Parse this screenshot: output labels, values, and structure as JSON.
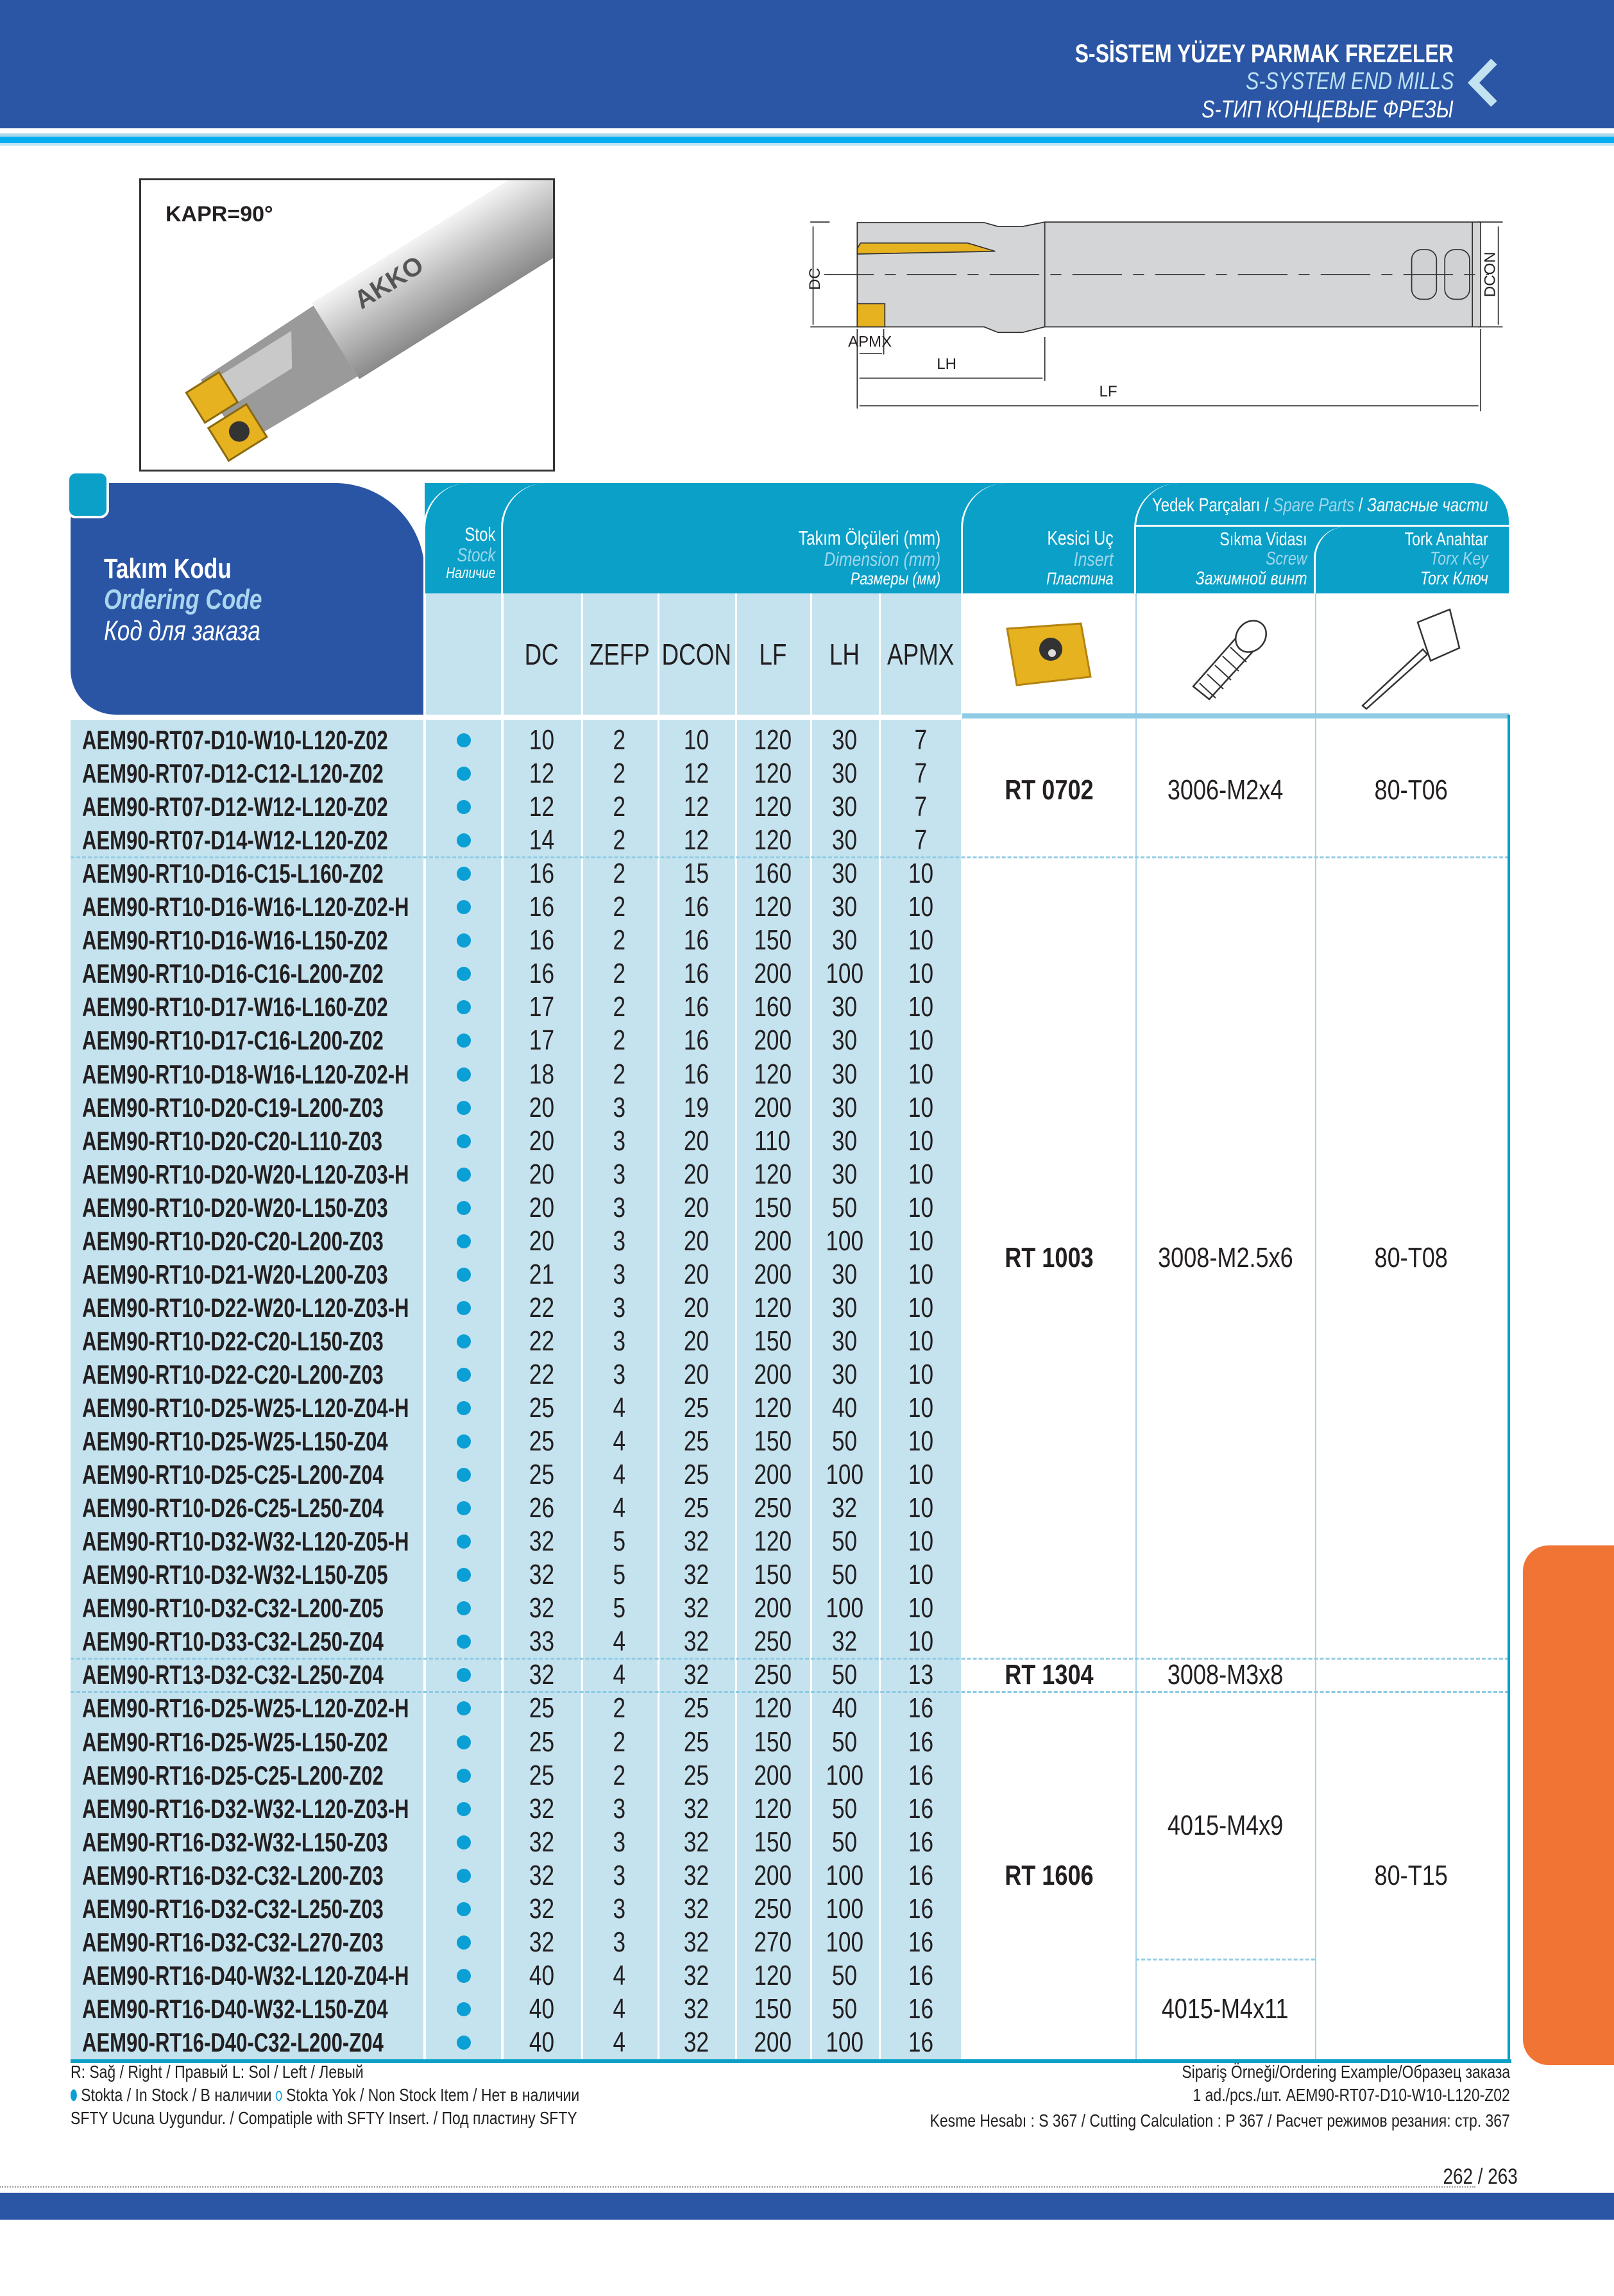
{
  "header": {
    "title_tr": "S-SİSTEM YÜZEY PARMAK FREZELER",
    "title_en": "S-SYSTEM END MILLS",
    "title_ru": "S-ТИП КОНЦЕВЫЕ ФРЕЗЫ",
    "back_icon": "chevron-left-icon"
  },
  "product": {
    "kapr": "KAPR=90°"
  },
  "diagram": {
    "labels": {
      "dc": "DC",
      "dcon": "DCON",
      "apmx": "APMX",
      "lh": "LH",
      "lf": "LF"
    }
  },
  "table": {
    "ordering_code": {
      "tr": "Takım Kodu",
      "en": "Ordering Code",
      "ru": "Код для заказа"
    },
    "stock": {
      "tr": "Stok",
      "en": "Stock",
      "ru": "Наличие"
    },
    "dimensions": {
      "tr": "Takım Ölçüleri (mm)",
      "en": "Dimension (mm)",
      "ru": "Размеры (мм)"
    },
    "insert": {
      "tr": "Kesici Uç",
      "en": "Insert",
      "ru": "Пластина"
    },
    "spare_parts": {
      "tr": "Yedek Parçaları",
      "en": "Spare Parts",
      "ru": "Запасные части"
    },
    "screw": {
      "tr": "Sıkma Vidası",
      "en": "Screw",
      "ru": "Зажимной винт"
    },
    "torx": {
      "tr": "Tork Anahtar",
      "en": "Torx Key",
      "ru": "Torx Ключ"
    },
    "columns": [
      "DC",
      "ZEFP",
      "DCON",
      "LF",
      "LH",
      "APMX"
    ],
    "groups": [
      {
        "insert": "RT 0702",
        "torx": "80-T06",
        "screws": [
          {
            "name": "3006-M2x4",
            "rows": [
              [
                "AEM90-RT07-D10-W10-L120-Z02",
                "10",
                "2",
                "10",
                "120",
                "30",
                "7"
              ],
              [
                "AEM90-RT07-D12-C12-L120-Z02",
                "12",
                "2",
                "12",
                "120",
                "30",
                "7"
              ],
              [
                "AEM90-RT07-D12-W12-L120-Z02",
                "12",
                "2",
                "12",
                "120",
                "30",
                "7"
              ],
              [
                "AEM90-RT07-D14-W12-L120-Z02",
                "14",
                "2",
                "12",
                "120",
                "30",
                "7"
              ]
            ]
          }
        ]
      },
      {
        "insert": "RT 1003",
        "torx": "80-T08",
        "screws": [
          {
            "name": "3008-M2.5x6",
            "rows": [
              [
                "AEM90-RT10-D16-C15-L160-Z02",
                "16",
                "2",
                "15",
                "160",
                "30",
                "10"
              ],
              [
                "AEM90-RT10-D16-W16-L120-Z02-H",
                "16",
                "2",
                "16",
                "120",
                "30",
                "10"
              ],
              [
                "AEM90-RT10-D16-W16-L150-Z02",
                "16",
                "2",
                "16",
                "150",
                "30",
                "10"
              ],
              [
                "AEM90-RT10-D16-C16-L200-Z02",
                "16",
                "2",
                "16",
                "200",
                "100",
                "10"
              ],
              [
                "AEM90-RT10-D17-W16-L160-Z02",
                "17",
                "2",
                "16",
                "160",
                "30",
                "10"
              ],
              [
                "AEM90-RT10-D17-C16-L200-Z02",
                "17",
                "2",
                "16",
                "200",
                "30",
                "10"
              ],
              [
                "AEM90-RT10-D18-W16-L120-Z02-H",
                "18",
                "2",
                "16",
                "120",
                "30",
                "10"
              ],
              [
                "AEM90-RT10-D20-C19-L200-Z03",
                "20",
                "3",
                "19",
                "200",
                "30",
                "10"
              ],
              [
                "AEM90-RT10-D20-C20-L110-Z03",
                "20",
                "3",
                "20",
                "110",
                "30",
                "10"
              ],
              [
                "AEM90-RT10-D20-W20-L120-Z03-H",
                "20",
                "3",
                "20",
                "120",
                "30",
                "10"
              ],
              [
                "AEM90-RT10-D20-W20-L150-Z03",
                "20",
                "3",
                "20",
                "150",
                "50",
                "10"
              ],
              [
                "AEM90-RT10-D20-C20-L200-Z03",
                "20",
                "3",
                "20",
                "200",
                "100",
                "10"
              ],
              [
                "AEM90-RT10-D21-W20-L200-Z03",
                "21",
                "3",
                "20",
                "200",
                "30",
                "10"
              ],
              [
                "AEM90-RT10-D22-W20-L120-Z03-H",
                "22",
                "3",
                "20",
                "120",
                "30",
                "10"
              ],
              [
                "AEM90-RT10-D22-C20-L150-Z03",
                "22",
                "3",
                "20",
                "150",
                "30",
                "10"
              ],
              [
                "AEM90-RT10-D22-C20-L200-Z03",
                "22",
                "3",
                "20",
                "200",
                "30",
                "10"
              ],
              [
                "AEM90-RT10-D25-W25-L120-Z04-H",
                "25",
                "4",
                "25",
                "120",
                "40",
                "10"
              ],
              [
                "AEM90-RT10-D25-W25-L150-Z04",
                "25",
                "4",
                "25",
                "150",
                "50",
                "10"
              ],
              [
                "AEM90-RT10-D25-C25-L200-Z04",
                "25",
                "4",
                "25",
                "200",
                "100",
                "10"
              ],
              [
                "AEM90-RT10-D26-C25-L250-Z04",
                "26",
                "4",
                "25",
                "250",
                "32",
                "10"
              ],
              [
                "AEM90-RT10-D32-W32-L120-Z05-H",
                "32",
                "5",
                "32",
                "120",
                "50",
                "10"
              ],
              [
                "AEM90-RT10-D32-W32-L150-Z05",
                "32",
                "5",
                "32",
                "150",
                "50",
                "10"
              ],
              [
                "AEM90-RT10-D32-C32-L200-Z05",
                "32",
                "5",
                "32",
                "200",
                "100",
                "10"
              ],
              [
                "AEM90-RT10-D33-C32-L250-Z04",
                "33",
                "4",
                "32",
                "250",
                "32",
                "10"
              ]
            ]
          }
        ]
      },
      {
        "insert": "RT 1304",
        "torx": "",
        "screws": [
          {
            "name": "3008-M3x8",
            "rows": [
              [
                "AEM90-RT13-D32-C32-L250-Z04",
                "32",
                "4",
                "32",
                "250",
                "50",
                "13"
              ]
            ]
          }
        ]
      },
      {
        "insert": "RT 1606",
        "torx": "80-T15",
        "screws": [
          {
            "name": "4015-M4x9",
            "rows": [
              [
                "AEM90-RT16-D25-W25-L120-Z02-H",
                "25",
                "2",
                "25",
                "120",
                "40",
                "16"
              ],
              [
                "AEM90-RT16-D25-W25-L150-Z02",
                "25",
                "2",
                "25",
                "150",
                "50",
                "16"
              ],
              [
                "AEM90-RT16-D25-C25-L200-Z02",
                "25",
                "2",
                "25",
                "200",
                "100",
                "16"
              ],
              [
                "AEM90-RT16-D32-W32-L120-Z03-H",
                "32",
                "3",
                "32",
                "120",
                "50",
                "16"
              ],
              [
                "AEM90-RT16-D32-W32-L150-Z03",
                "32",
                "3",
                "32",
                "150",
                "50",
                "16"
              ],
              [
                "AEM90-RT16-D32-C32-L200-Z03",
                "32",
                "3",
                "32",
                "200",
                "100",
                "16"
              ],
              [
                "AEM90-RT16-D32-C32-L250-Z03",
                "32",
                "3",
                "32",
                "250",
                "100",
                "16"
              ],
              [
                "AEM90-RT16-D32-C32-L270-Z03",
                "32",
                "3",
                "32",
                "270",
                "100",
                "16"
              ]
            ]
          },
          {
            "name": "4015-M4x11",
            "rows": [
              [
                "AEM90-RT16-D40-W32-L120-Z04-H",
                "40",
                "4",
                "32",
                "120",
                "50",
                "16"
              ],
              [
                "AEM90-RT16-D40-W32-L150-Z04",
                "40",
                "4",
                "32",
                "150",
                "50",
                "16"
              ],
              [
                "AEM90-RT16-D40-C32-L200-Z04",
                "40",
                "4",
                "32",
                "200",
                "100",
                "16"
              ]
            ]
          }
        ]
      }
    ],
    "stock_status": "in-stock"
  },
  "footer": {
    "legend_rl": "R: Sağ / Right / Правый  L: Sol / Left / Левый",
    "legend_in_stock": "Stokta / In Stock / В наличии",
    "legend_non_stock": "Stokta Yok / Non Stock Item / Нет в наличии",
    "legend_sfty": "SFTY Ucuna Uygundur. / Compatiple with SFTY Insert. / Под пластину SFTY",
    "ordering_example_label": "Sipariş Örneği/Ordering Example/Образец заказа",
    "ordering_example": "1 ad./pcs./шт.  AEM90-RT07-D10-W10-L120-Z02",
    "cutting_calc": "Kesme Hesabı : S 367 / Cutting Calculation : P 367 / Расчет режимов резания: стр. 367",
    "page_number": "262 / 263"
  },
  "colors": {
    "brand_blue": "#2a56a5",
    "header_cyan": "#0aa0c8",
    "row_bg": "#c5e3ef",
    "stock_dot": "#0a9fd5",
    "side_tab": "#f07535",
    "insert_gold": "#e7b21f"
  }
}
